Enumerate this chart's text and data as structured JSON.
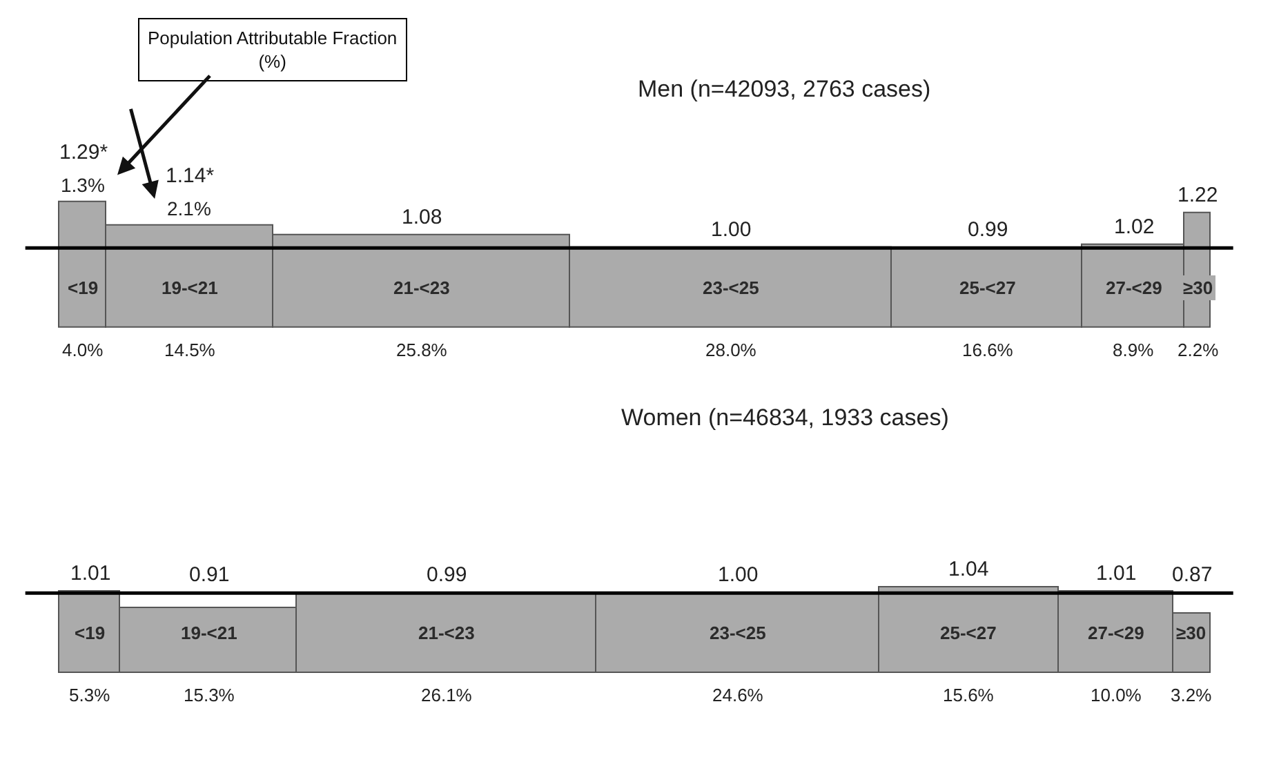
{
  "chart_data": [
    {
      "type": "other",
      "title": "Men (n=42093, 2763 cases)",
      "categories": [
        "<19",
        "19-<21",
        "21-<23",
        "23-<25",
        "25-<27",
        "27-<29",
        "≥30"
      ],
      "series": [
        {
          "color": "#ababab",
          "values": [
            1.29,
            1.14,
            1.08,
            1.0,
            0.99,
            1.02,
            1.22
          ],
          "value_labels": [
            "1.29*",
            "1.14*",
            "1.08",
            "1.00",
            "0.99",
            "1.02",
            "1.22"
          ]
        },
        {
          "values": [
            4.0,
            14.5,
            25.8,
            28.0,
            16.6,
            8.9,
            2.2
          ],
          "value_labels": [
            "4.0%",
            "14.5%",
            "25.8%",
            "28.0%",
            "16.6%",
            "8.9%",
            "2.2%"
          ]
        }
      ],
      "annotations": [
        "Population Attributable Fraction (%)",
        {
          "text": "1.3%",
          "x": "<19"
        },
        {
          "text": "2.1%",
          "x": "19-<21"
        }
      ]
    },
    {
      "type": "other",
      "title": "Women (n=46834, 1933 cases)",
      "categories": [
        "<19",
        "19-<21",
        "21-<23",
        "23-<25",
        "25-<27",
        "27-<29",
        "≥30"
      ],
      "series": [
        {
          "color": "#ababab",
          "values": [
            1.01,
            0.91,
            0.99,
            1.0,
            1.04,
            1.01,
            0.87
          ],
          "value_labels": [
            "1.01",
            "0.91",
            "0.99",
            "1.00",
            "1.04",
            "1.01",
            "0.87"
          ]
        },
        {
          "values": [
            5.3,
            15.3,
            26.1,
            24.6,
            15.6,
            10.0,
            3.2
          ],
          "value_labels": [
            "5.3%",
            "15.3%",
            "26.1%",
            "24.6%",
            "15.6%",
            "10.0%",
            "3.2%"
          ]
        }
      ]
    }
  ]
}
